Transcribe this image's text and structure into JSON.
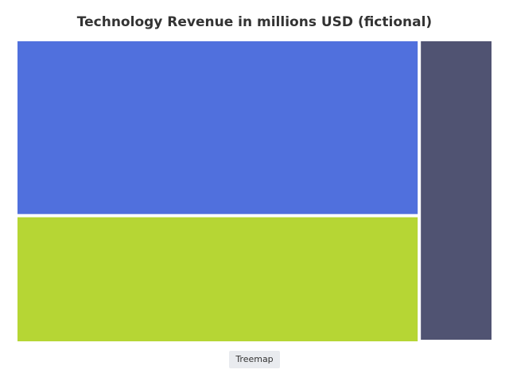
{
  "chart_data": {
    "type": "treemap",
    "title": "Technology Revenue in millions USD (fictional)",
    "legend": {
      "label": "Treemap",
      "placement": "bottom-center"
    },
    "series": [
      {
        "name": "",
        "points": [
          {
            "label": "",
            "value": 52,
            "color": "#5070dd"
          },
          {
            "label": "",
            "value": 37,
            "color": "#b6d634"
          },
          {
            "label": "",
            "value": 16,
            "color": "#505372"
          }
        ]
      }
    ]
  }
}
